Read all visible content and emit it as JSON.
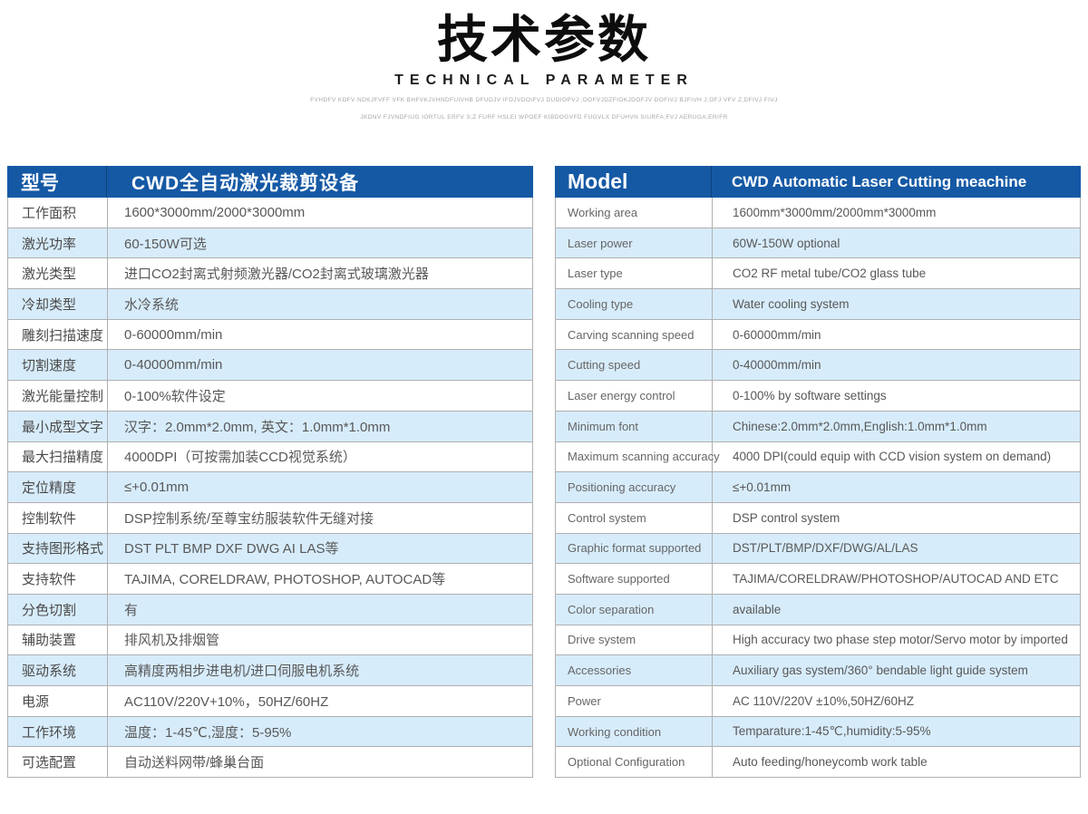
{
  "colors": {
    "header_bg": "#1559a5",
    "stripe_bg": "#d7ecfb",
    "border": "#b0b0b0"
  },
  "title": {
    "heading_cn": "技术参数",
    "heading_en": "TECHNICAL PARAMETER",
    "subtext_line1": "FVHDFV KDFV NDKJFVFF VFK BHFVKJVHNDFUIVHB DFUDJV IFDJVDOIFVJ DUDIOPVJ ;DOFVJDZFIOKJDOFJV DOFIVJ BJFIVH J;OFJ VFV Z;DFIVJ FIVJ",
    "subtext_line2": "JKDNV FJVNDFIUG IORTUL ERFV S;Z FURF HSLEI WPOEF KIBDOGVFD FUGVLX DFUHVN SIURFA;FVJ AERUGA;ERIFR"
  },
  "left_table": {
    "header": {
      "label": "型号",
      "value": "CWD全自动激光裁剪设备"
    },
    "rows": [
      {
        "label": "工作面积",
        "value": "1600*3000mm/2000*3000mm"
      },
      {
        "label": "激光功率",
        "value": "60-150W可选"
      },
      {
        "label": "激光类型",
        "value": "进口CO2封离式射频激光器/CO2封离式玻璃激光器"
      },
      {
        "label": "冷却类型",
        "value": "水冷系统"
      },
      {
        "label": "雕刻扫描速度",
        "value": "0-60000mm/min"
      },
      {
        "label": "切割速度",
        "value": "0-40000mm/min"
      },
      {
        "label": "激光能量控制",
        "value": "0-100%软件设定"
      },
      {
        "label": "最小成型文字",
        "value": "汉字：2.0mm*2.0mm, 英文：1.0mm*1.0mm"
      },
      {
        "label": "最大扫描精度",
        "value": "4000DPI（可按需加装CCD视觉系统）"
      },
      {
        "label": "定位精度",
        "value": "≤+0.01mm"
      },
      {
        "label": "控制软件",
        "value": "DSP控制系统/至尊宝纺服装软件无缝对接"
      },
      {
        "label": "支持图形格式",
        "value": "DST PLT BMP DXF DWG AI LAS等"
      },
      {
        "label": "支持软件",
        "value": "TAJIMA, CORELDRAW, PHOTOSHOP, AUTOCAD等"
      },
      {
        "label": "分色切割",
        "value": "有"
      },
      {
        "label": "辅助装置",
        "value": "排风机及排烟管"
      },
      {
        "label": "驱动系统",
        "value": "高精度两相步进电机/进口伺服电机系统"
      },
      {
        "label": "电源",
        "value": "AC110V/220V+10%，50HZ/60HZ"
      },
      {
        "label": "工作环境",
        "value": "温度：1-45℃,湿度：5-95%"
      },
      {
        "label": "可选配置",
        "value": "自动送料网带/蜂巢台面"
      }
    ]
  },
  "right_table": {
    "header": {
      "label": "Model",
      "value": "CWD Automatic Laser Cutting meachine"
    },
    "rows": [
      {
        "label": "Working area",
        "value": "1600mm*3000mm/2000mm*3000mm"
      },
      {
        "label": "Laser power",
        "value": "60W-150W optional"
      },
      {
        "label": "Laser type",
        "value": "CO2 RF metal tube/CO2 glass tube"
      },
      {
        "label": "Cooling type",
        "value": "Water cooling system"
      },
      {
        "label": "Carving scanning speed",
        "value": "0-60000mm/min"
      },
      {
        "label": "Cutting speed",
        "value": "0-40000mm/min"
      },
      {
        "label": "Laser energy control",
        "value": "0-100% by software settings"
      },
      {
        "label": "Minimum font",
        "value": "Chinese:2.0mm*2.0mm,English:1.0mm*1.0mm"
      },
      {
        "label": "Maximum scanning accuracy",
        "value": "4000 DPI(could equip with CCD vision system on demand)"
      },
      {
        "label": "Positioning accuracy",
        "value": "≤+0.01mm"
      },
      {
        "label": "Control system",
        "value": "DSP control system"
      },
      {
        "label": "Graphic format supported",
        "value": "DST/PLT/BMP/DXF/DWG/AL/LAS"
      },
      {
        "label": "Software supported",
        "value": "TAJIMA/CORELDRAW/PHOTOSHOP/AUTOCAD AND ETC"
      },
      {
        "label": "Color separation",
        "value": "available"
      },
      {
        "label": "Drive system",
        "value": "High accuracy two phase step motor/Servo motor by imported"
      },
      {
        "label": "Accessories",
        "value": "Auxiliary gas system/360°  bendable light guide system"
      },
      {
        "label": "Power",
        "value": "AC 110V/220V ±10%,50HZ/60HZ"
      },
      {
        "label": "Working condition",
        "value": "Temparature:1-45℃,humidity:5-95%"
      },
      {
        "label": "Optional Configuration",
        "value": "Auto feeding/honeycomb work table"
      }
    ]
  }
}
